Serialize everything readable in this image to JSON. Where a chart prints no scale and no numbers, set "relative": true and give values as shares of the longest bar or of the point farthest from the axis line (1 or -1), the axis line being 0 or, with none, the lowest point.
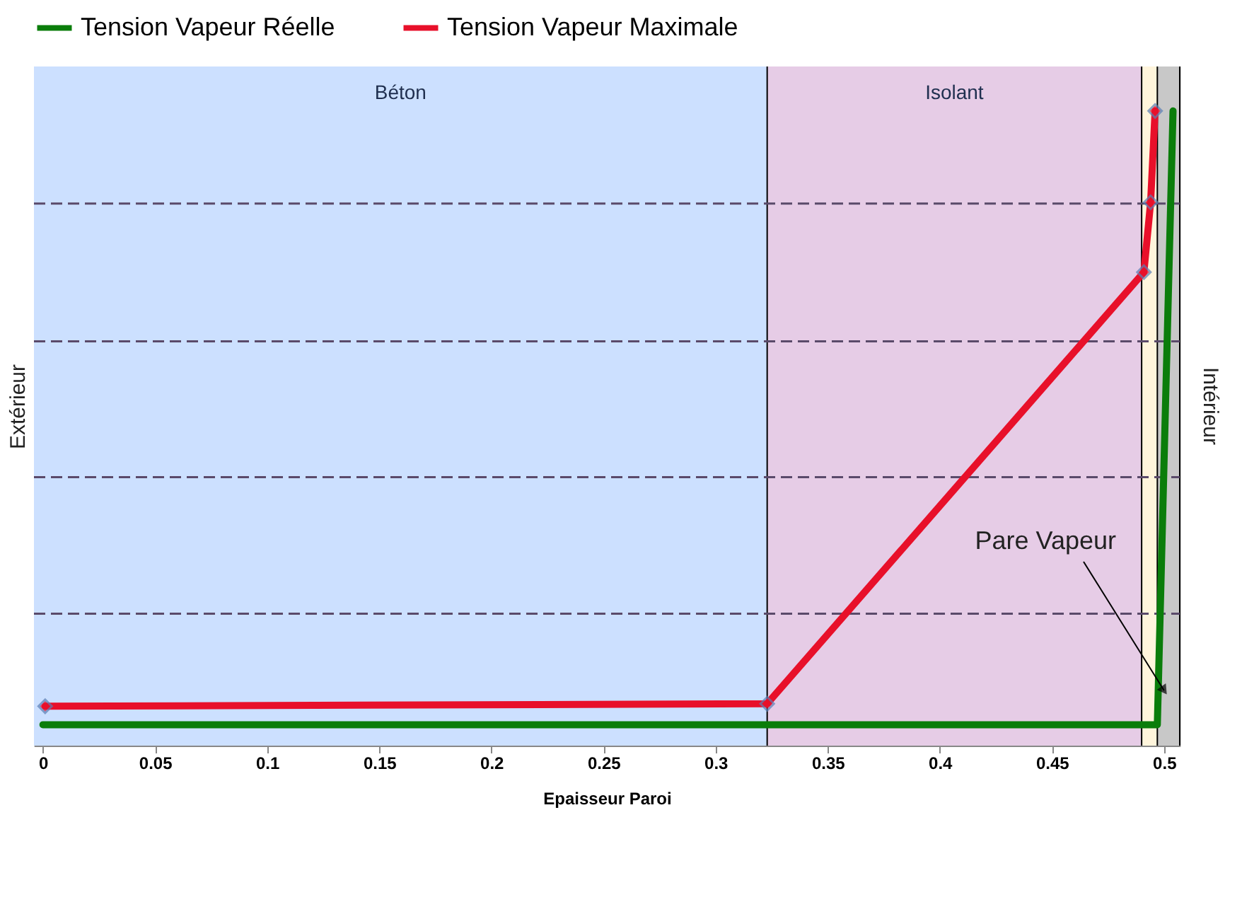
{
  "chart_data": {
    "type": "line",
    "relative": true,
    "xlabel": "Epaisseur Paroi",
    "ylabel": "Extérieur",
    "y2label": "Intérieur",
    "xlim": [
      -0.004,
      0.507
    ],
    "xticks": [
      0,
      0.05,
      0.1,
      0.15,
      0.2,
      0.25,
      0.3,
      0.35,
      0.4,
      0.45,
      0.5
    ],
    "tick_labels": "x",
    "legend": "top",
    "line_style": "solid",
    "series": [
      {
        "name": "Tension Vapeur Réelle",
        "color": "#0a7d0a",
        "marker": "none",
        "x": [
          0,
          0.497,
          0.504
        ],
        "values": [
          0.033,
          0.033,
          1.0
        ]
      },
      {
        "name": "Tension Vapeur Maximale",
        "color": "#e8102a",
        "marker": "diamond",
        "x": [
          0.001,
          0.323,
          0.491,
          0.494,
          0.496
        ],
        "values": [
          0.062,
          0.066,
          0.746,
          0.856,
          1.0
        ]
      }
    ],
    "bands": [
      {
        "axis": "x",
        "from": -0.004,
        "to": 0.323,
        "label": "Béton",
        "color": "#cce0ff"
      },
      {
        "axis": "x",
        "from": 0.323,
        "to": 0.49,
        "label": "Isolant",
        "color": "#e6cce6"
      },
      {
        "axis": "x",
        "from": 0.49,
        "to": 0.497,
        "label": null,
        "color": "#fff5dc"
      },
      {
        "axis": "x",
        "from": 0.497,
        "to": 0.507,
        "label": null,
        "color": "#c8c8c8"
      }
    ],
    "ref_lines": [
      {
        "axis": "y",
        "value": 0.208,
        "label": null,
        "color": "#5a4a6a",
        "line_style": "dashed"
      },
      {
        "axis": "y",
        "value": 0.423,
        "label": null,
        "color": "#5a4a6a",
        "line_style": "dashed"
      },
      {
        "axis": "y",
        "value": 0.637,
        "label": null,
        "color": "#5a4a6a",
        "line_style": "dashed"
      },
      {
        "axis": "y",
        "value": 0.854,
        "label": null,
        "color": "#5a4a6a",
        "line_style": "dashed"
      }
    ],
    "annotations": [
      {
        "text": "Pare Vapeur",
        "x": 0.5,
        "y": 0.087
      }
    ]
  }
}
